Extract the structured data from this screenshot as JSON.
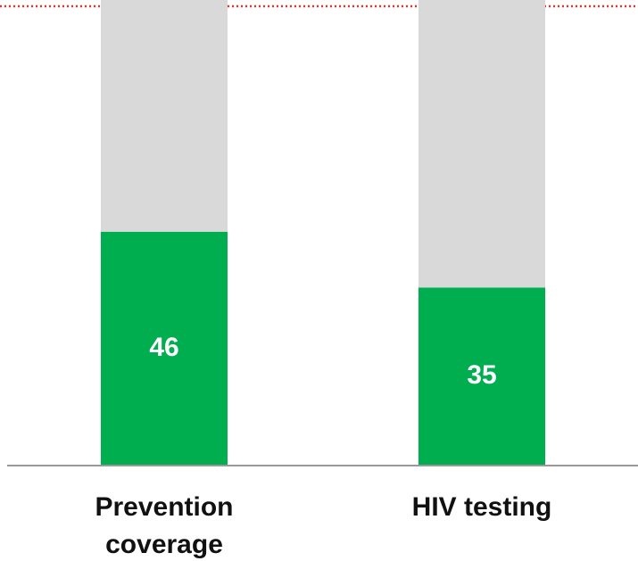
{
  "chart_data": {
    "type": "stacked-bar",
    "categories": [
      "Prevention coverage",
      "HIV testing"
    ],
    "series": [
      {
        "color": "#00ad4f",
        "values": [
          46,
          35
        ]
      },
      {
        "color": "#d9d9d9",
        "values": [
          54,
          65
        ]
      }
    ],
    "ylim": [
      0,
      100
    ]
  }
}
